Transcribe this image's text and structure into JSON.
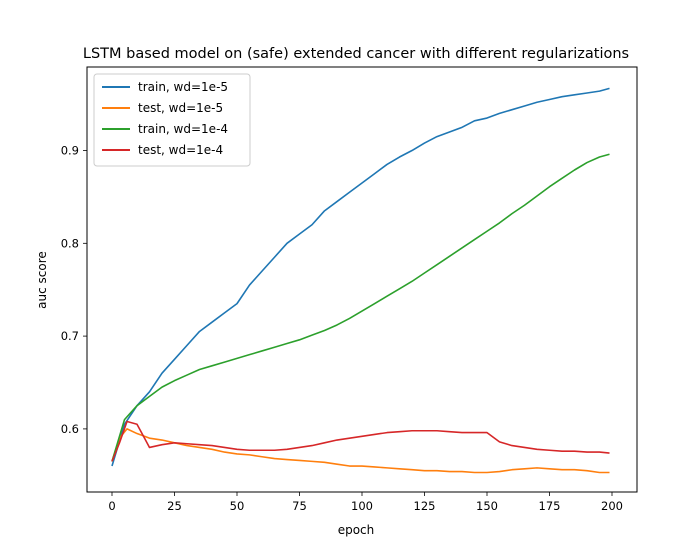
{
  "chart_data": {
    "type": "line",
    "title": "LSTM based model on (safe) extended cancer with different regularizations",
    "xlabel": "epoch",
    "ylabel": "auc score",
    "xlim": [
      -10,
      210
    ],
    "ylim": [
      0.532,
      0.99
    ],
    "xticks": [
      0,
      25,
      50,
      75,
      100,
      125,
      150,
      175,
      200
    ],
    "yticks": [
      0.6,
      0.7,
      0.8,
      0.9
    ],
    "xtick_labels": [
      "0",
      "25",
      "50",
      "75",
      "100",
      "125",
      "150",
      "175",
      "200"
    ],
    "ytick_labels": [
      "0.6",
      "0.7",
      "0.8",
      "0.9"
    ],
    "legend_position": "top-left",
    "grid": false,
    "series": [
      {
        "name": "train, wd=1e-5",
        "color": "#1f77b4",
        "x": [
          0,
          5,
          10,
          15,
          20,
          25,
          30,
          35,
          40,
          45,
          50,
          55,
          60,
          65,
          70,
          75,
          80,
          85,
          90,
          95,
          100,
          105,
          110,
          115,
          120,
          125,
          130,
          135,
          140,
          145,
          150,
          155,
          160,
          165,
          170,
          175,
          180,
          185,
          190,
          195,
          199
        ],
        "values": [
          0.56,
          0.605,
          0.625,
          0.64,
          0.66,
          0.675,
          0.69,
          0.705,
          0.715,
          0.725,
          0.735,
          0.755,
          0.77,
          0.785,
          0.8,
          0.81,
          0.82,
          0.835,
          0.845,
          0.855,
          0.865,
          0.875,
          0.885,
          0.893,
          0.9,
          0.908,
          0.915,
          0.92,
          0.925,
          0.932,
          0.935,
          0.94,
          0.944,
          0.948,
          0.952,
          0.955,
          0.958,
          0.96,
          0.962,
          0.964,
          0.967
        ]
      },
      {
        "name": "test, wd=1e-5",
        "color": "#ff7f0e",
        "x": [
          0,
          3,
          6,
          10,
          15,
          20,
          25,
          30,
          35,
          40,
          45,
          50,
          55,
          60,
          65,
          70,
          75,
          80,
          85,
          90,
          95,
          100,
          105,
          110,
          115,
          120,
          125,
          130,
          135,
          140,
          145,
          150,
          155,
          160,
          165,
          170,
          175,
          180,
          185,
          190,
          195,
          199
        ],
        "values": [
          0.565,
          0.59,
          0.6,
          0.595,
          0.59,
          0.588,
          0.585,
          0.582,
          0.58,
          0.578,
          0.575,
          0.573,
          0.572,
          0.57,
          0.568,
          0.567,
          0.566,
          0.565,
          0.564,
          0.562,
          0.56,
          0.56,
          0.559,
          0.558,
          0.557,
          0.556,
          0.555,
          0.555,
          0.554,
          0.554,
          0.553,
          0.553,
          0.554,
          0.556,
          0.557,
          0.558,
          0.557,
          0.556,
          0.556,
          0.555,
          0.553,
          0.553
        ]
      },
      {
        "name": "train, wd=1e-4",
        "color": "#2ca02c",
        "x": [
          0,
          5,
          10,
          15,
          20,
          25,
          30,
          35,
          40,
          45,
          50,
          55,
          60,
          65,
          70,
          75,
          80,
          85,
          90,
          95,
          100,
          105,
          110,
          115,
          120,
          125,
          130,
          135,
          140,
          145,
          150,
          155,
          160,
          165,
          170,
          175,
          180,
          185,
          190,
          195,
          199
        ],
        "values": [
          0.565,
          0.61,
          0.625,
          0.635,
          0.645,
          0.652,
          0.658,
          0.664,
          0.668,
          0.672,
          0.676,
          0.68,
          0.684,
          0.688,
          0.692,
          0.696,
          0.701,
          0.706,
          0.712,
          0.719,
          0.727,
          0.735,
          0.743,
          0.751,
          0.759,
          0.768,
          0.777,
          0.786,
          0.795,
          0.804,
          0.813,
          0.822,
          0.832,
          0.841,
          0.851,
          0.861,
          0.87,
          0.879,
          0.887,
          0.893,
          0.896
        ]
      },
      {
        "name": "test, wd=1e-4",
        "color": "#d62728",
        "x": [
          0,
          3,
          6,
          10,
          13,
          15,
          20,
          25,
          30,
          35,
          40,
          45,
          50,
          55,
          60,
          65,
          70,
          75,
          80,
          85,
          90,
          95,
          100,
          105,
          110,
          115,
          120,
          125,
          130,
          135,
          140,
          145,
          150,
          155,
          160,
          165,
          170,
          175,
          180,
          185,
          190,
          195,
          199
        ],
        "values": [
          0.565,
          0.585,
          0.608,
          0.605,
          0.59,
          0.58,
          0.583,
          0.585,
          0.584,
          0.583,
          0.582,
          0.58,
          0.578,
          0.577,
          0.577,
          0.577,
          0.578,
          0.58,
          0.582,
          0.585,
          0.588,
          0.59,
          0.592,
          0.594,
          0.596,
          0.597,
          0.598,
          0.598,
          0.598,
          0.597,
          0.596,
          0.596,
          0.596,
          0.586,
          0.582,
          0.58,
          0.578,
          0.577,
          0.576,
          0.576,
          0.575,
          0.575,
          0.574
        ]
      }
    ]
  }
}
